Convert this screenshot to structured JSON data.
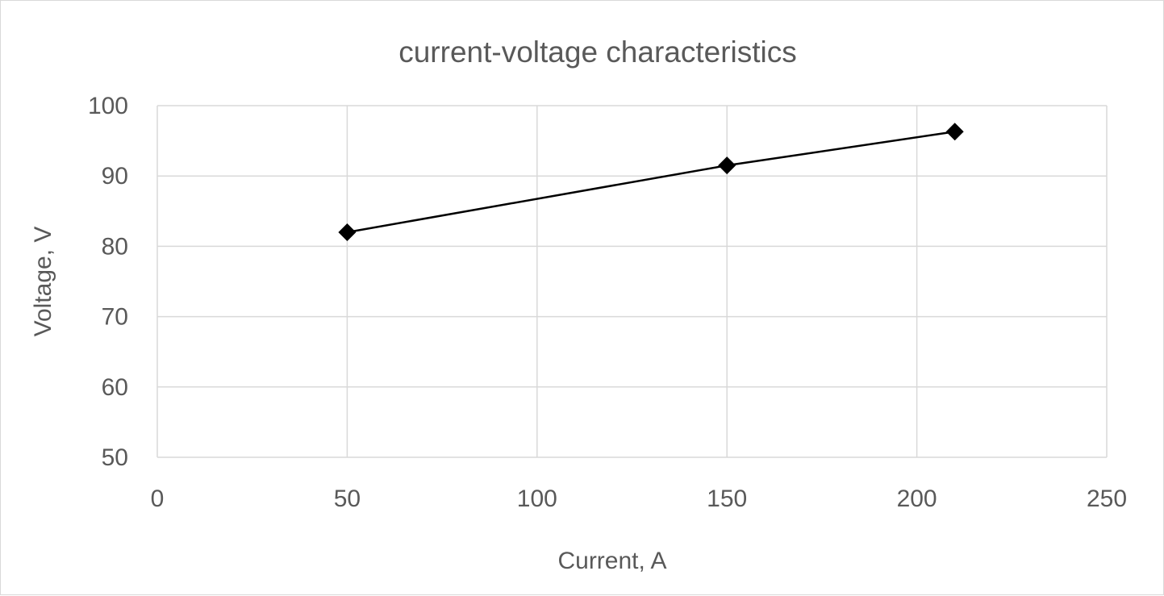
{
  "chart_data": {
    "type": "scatter",
    "title": "current-voltage characteristics",
    "xlabel": "Current, A",
    "ylabel": "Voltage, V",
    "xlim": [
      0,
      250
    ],
    "ylim": [
      50,
      100
    ],
    "xticks": [
      0,
      50,
      100,
      150,
      200,
      250
    ],
    "yticks": [
      50,
      60,
      70,
      80,
      90,
      100
    ],
    "grid": true,
    "legend": "none",
    "series": [
      {
        "x": [
          50,
          150,
          210
        ],
        "y": [
          82,
          91.5,
          96.3
        ],
        "color": "#000000",
        "marker": "diamond",
        "line": "straight"
      }
    ]
  }
}
